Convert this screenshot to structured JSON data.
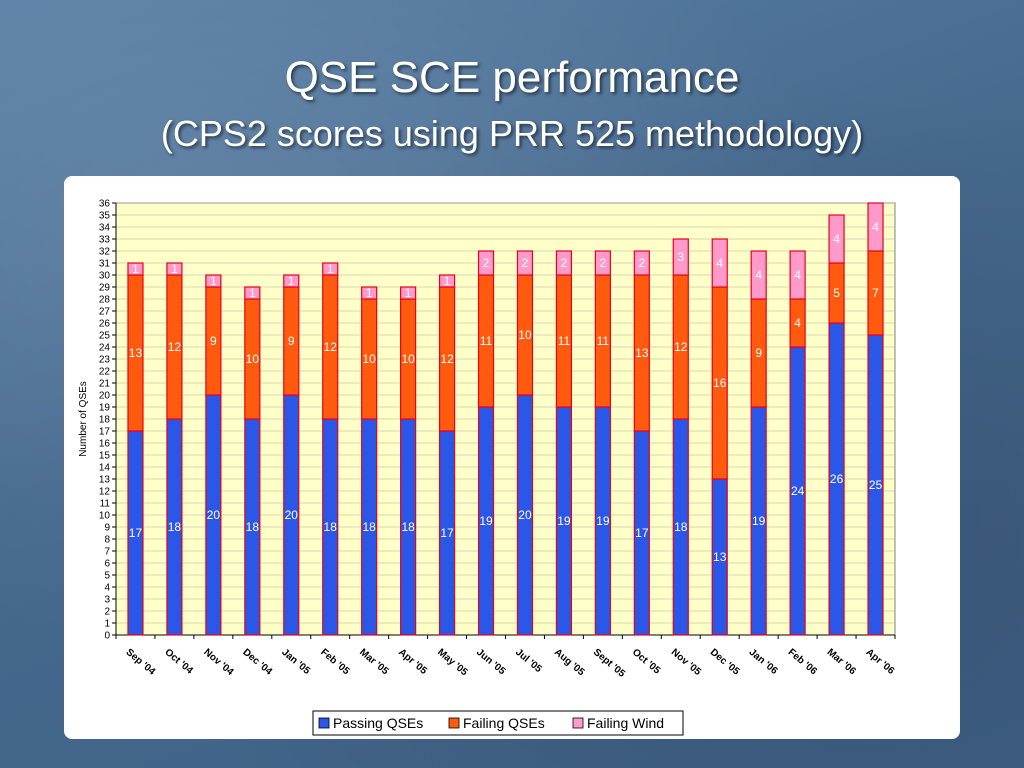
{
  "slide": {
    "title": "QSE SCE performance",
    "subtitle": "(CPS2 scores using PRR 525 methodology)"
  },
  "colors": {
    "plot_bg": "#ffffc8",
    "Passing QSEs": "#2a57e8",
    "Failing QSEs": "#ff5a0e",
    "Failing Wind": "#ff9acb",
    "bar_outline": "#e8001c"
  },
  "chart_data": {
    "type": "bar",
    "stacked": true,
    "title": "",
    "xlabel": "",
    "ylabel": "Number of QSEs",
    "ylim": [
      0,
      36
    ],
    "yticks": [
      0,
      1,
      2,
      3,
      4,
      5,
      6,
      7,
      8,
      9,
      10,
      11,
      12,
      13,
      14,
      15,
      16,
      17,
      18,
      19,
      20,
      21,
      22,
      23,
      24,
      25,
      26,
      27,
      28,
      29,
      30,
      31,
      32,
      33,
      34,
      35,
      36
    ],
    "grid": true,
    "legend_position": "bottom",
    "categories": [
      "Sep '04",
      "Oct '04",
      "Nov '04",
      "Dec '04",
      "Jan '05",
      "Feb '05",
      "Mar '05",
      "Apr '05",
      "May '05",
      "Jun '05",
      "Jul '05",
      "Aug '05",
      "Sept '05",
      "Oct '05",
      "Nov '05",
      "Dec '05",
      "Jan '06",
      "Feb '06",
      "Mar '06",
      "Apr '06"
    ],
    "series": [
      {
        "name": "Passing QSEs",
        "values": [
          17,
          18,
          20,
          18,
          20,
          18,
          18,
          18,
          17,
          19,
          20,
          19,
          19,
          17,
          18,
          13,
          19,
          24,
          26,
          25
        ]
      },
      {
        "name": "Failing QSEs",
        "values": [
          13,
          12,
          9,
          10,
          9,
          12,
          10,
          10,
          12,
          11,
          10,
          11,
          11,
          13,
          12,
          16,
          9,
          4,
          5,
          7
        ]
      },
      {
        "name": "Failing Wind",
        "values": [
          1,
          1,
          1,
          1,
          1,
          1,
          1,
          1,
          1,
          2,
          2,
          2,
          2,
          2,
          3,
          4,
          4,
          4,
          4,
          4
        ]
      }
    ]
  }
}
